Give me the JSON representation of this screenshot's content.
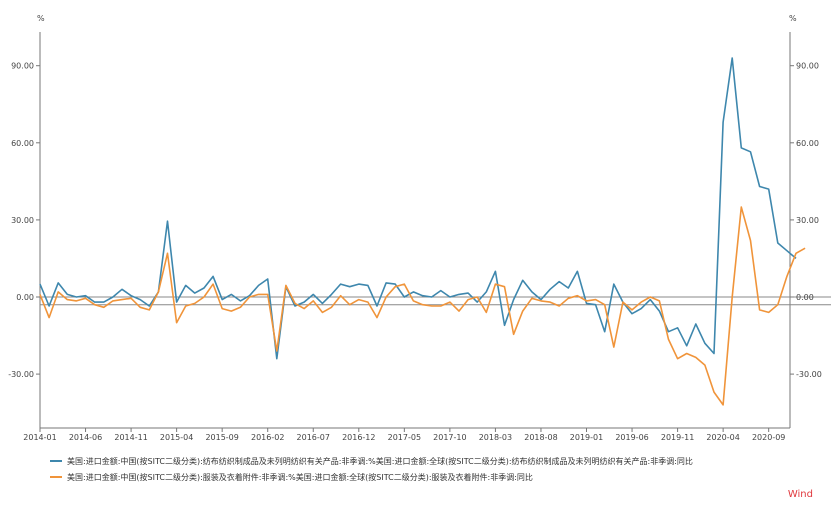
{
  "chart_data": {
    "type": "line",
    "left_unit": "%",
    "right_unit": "%",
    "y_ticks": [
      -30,
      0,
      30,
      60,
      90
    ],
    "y_tick_labels": [
      "-30.00",
      "0.00",
      "30.00",
      "60.00",
      "90.00"
    ],
    "ylim": [
      -45,
      100
    ],
    "x_tick_labels": [
      "2014-01",
      "2014-06",
      "2014-11",
      "2015-04",
      "2015-09",
      "2016-02",
      "2016-07",
      "2016-12",
      "2017-05",
      "2017-10",
      "2018-03",
      "2018-08",
      "2019-01",
      "2019-06",
      "2019-11",
      "2020-04",
      "2020-09"
    ],
    "x_start": "2014-01",
    "grid": false,
    "legend_position": "bottom",
    "series": [
      {
        "name": "美国:进口金额:中国(按SITC二级分类):纺布纺织制成品及未列明纺织有关产品:非季调:%美国:进口金额:全球(按SITC二级分类):纺布纺织制成品及未列明纺织有关产品:非季调:同比",
        "color": "#3e87ad",
        "axis": "left",
        "values": [
          5,
          -3.5,
          5.5,
          1,
          0,
          0.5,
          -2,
          -2,
          0,
          3,
          0.5,
          -1,
          -3.5,
          2,
          29.5,
          -2,
          4.5,
          1.5,
          3.5,
          8,
          -1,
          1,
          -1.5,
          0.5,
          4.5,
          7,
          -24,
          4,
          -3.5,
          -2,
          1,
          -2.5,
          1,
          5,
          4,
          5,
          4.5,
          -3.5,
          5.5,
          5,
          0,
          2,
          0.5,
          0,
          2.5,
          0,
          1,
          1.5,
          -2,
          2,
          10,
          -11,
          -1,
          6.5,
          2,
          -1,
          3,
          6,
          3.5,
          10,
          -2.5,
          -3,
          -13.5,
          5,
          -2,
          -6.5,
          -4.5,
          -1,
          -5.5,
          -13.5,
          -12,
          -19,
          -10.5,
          -18,
          -22,
          68,
          93,
          58,
          56.5,
          43,
          42,
          21,
          18,
          15
        ]
      },
      {
        "name": "美国:进口金额:中国(按SITC二级分类):服装及衣着附件:非季调:%美国:进口金额:全球(按SITC二级分类):服装及衣着附件:非季调:同比",
        "color": "#f0943a",
        "axis": "left",
        "values": [
          1,
          -8,
          2,
          -1,
          -1.5,
          -0.5,
          -3,
          -4,
          -1.5,
          -1,
          -0.5,
          -4,
          -5,
          2,
          17,
          -10,
          -3.5,
          -2.5,
          0,
          5,
          -4.5,
          -5.5,
          -4,
          0,
          1,
          1,
          -21,
          4.5,
          -2.5,
          -4.5,
          -1.5,
          -6,
          -4,
          0.5,
          -3,
          -1,
          -2,
          -8,
          0,
          4,
          5,
          -1.5,
          -3,
          -3.5,
          -3.5,
          -2,
          -5.5,
          -1,
          0,
          -6,
          5,
          4,
          -14.5,
          -5.5,
          -0.5,
          -1.5,
          -2,
          -3.5,
          -0.5,
          0.5,
          -1.5,
          -1,
          -3,
          -19.5,
          -2,
          -5,
          -2,
          0,
          -1.5,
          -16.5,
          -24,
          -22,
          -23.5,
          -26.5,
          -37,
          -42,
          0,
          35,
          22,
          -5,
          -6,
          -3,
          8,
          17,
          19
        ]
      }
    ]
  },
  "legend": [
    {
      "label": "美国:进口金额:中国(按SITC二级分类):纺布纺织制成品及未列明纺织有关产品:非季调:%美国:进口金额:全球(按SITC二级分类):纺布纺织制成品及未列明纺织有关产品:非季调:同比",
      "color": "#3e87ad"
    },
    {
      "label": "美国:进口金额:中国(按SITC二级分类):服装及衣着附件:非季调:%美国:进口金额:全球(按SITC二级分类):服装及衣着附件:非季调:同比",
      "color": "#f0943a"
    }
  ],
  "source": {
    "label": "Wind",
    "color": "#e0393e"
  }
}
